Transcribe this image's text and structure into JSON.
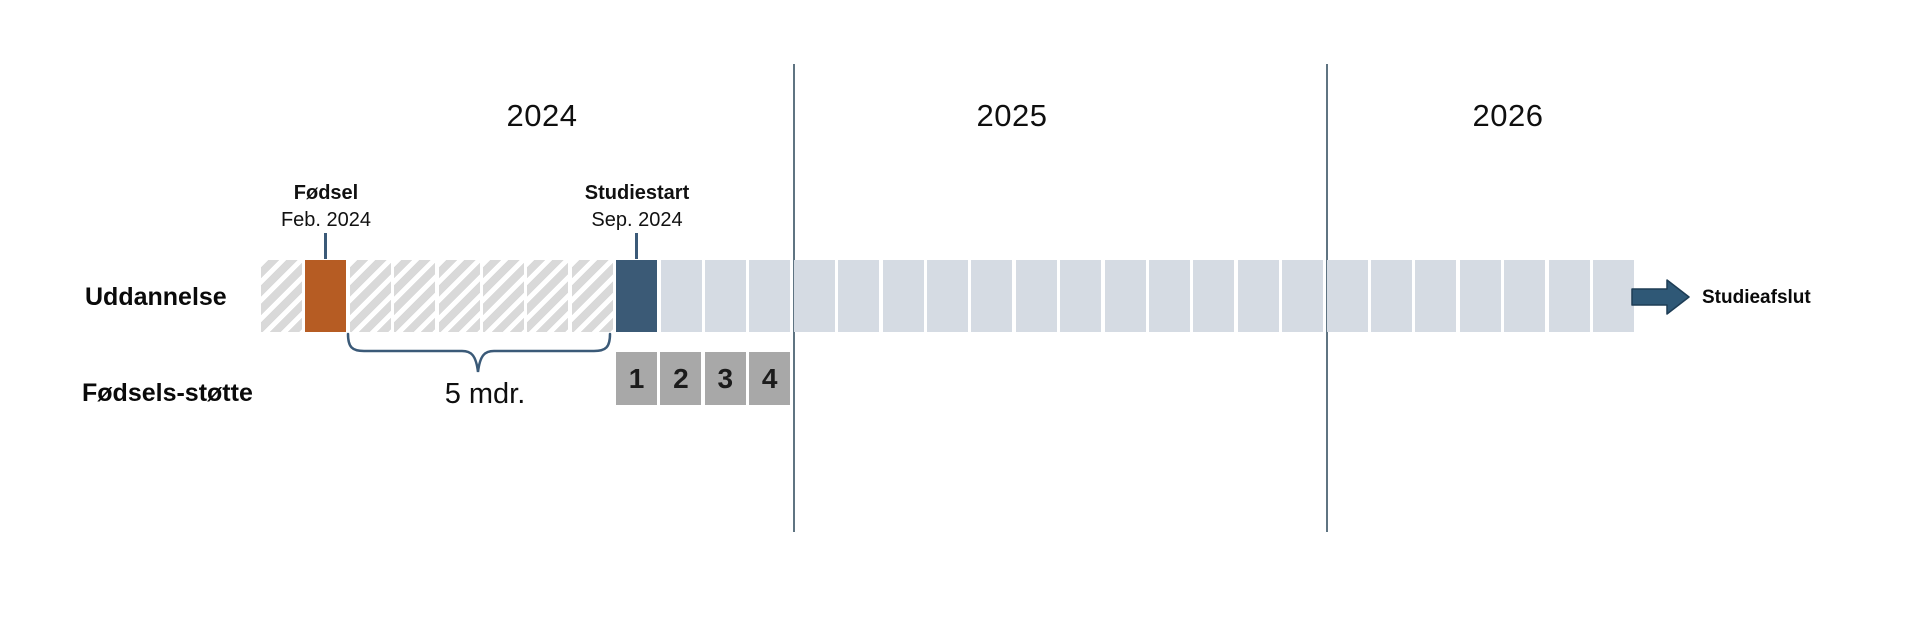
{
  "diagram": {
    "years": [
      "2024",
      "2025",
      "2026"
    ],
    "row_labels": {
      "education": "Uddannelse",
      "support": "Fødsels-støtte"
    },
    "events": {
      "birth": {
        "title": "Fødsel",
        "date": "Feb. 2024"
      },
      "study_start": {
        "title": "Studiestart",
        "date": "Sep. 2024"
      },
      "study_end": {
        "label": "Studieafslut"
      }
    },
    "duration_note": "5 mdr.",
    "support_blocks": [
      "1",
      "2",
      "3",
      "4"
    ],
    "timeline_cells": [
      "hatched",
      "birth",
      "hatched",
      "hatched",
      "hatched",
      "hatched",
      "hatched",
      "hatched",
      "study-start",
      "study",
      "study",
      "study",
      "study",
      "study",
      "study",
      "study",
      "study",
      "study",
      "study",
      "study",
      "study",
      "study",
      "study",
      "study",
      "study",
      "study",
      "study",
      "study",
      "study",
      "study",
      "study"
    ],
    "colors": {
      "birth": "#b65c23",
      "study_start": "#3b5a76",
      "study_month": "#d5dbe3",
      "hatch_stripe": "#d9d9d9",
      "support_block": "#a8a8a8",
      "divider": "#5f7482",
      "connector": "#3b5a78",
      "arrow_fill": "#2f5876",
      "arrow_outline": "#1e3d55"
    }
  }
}
